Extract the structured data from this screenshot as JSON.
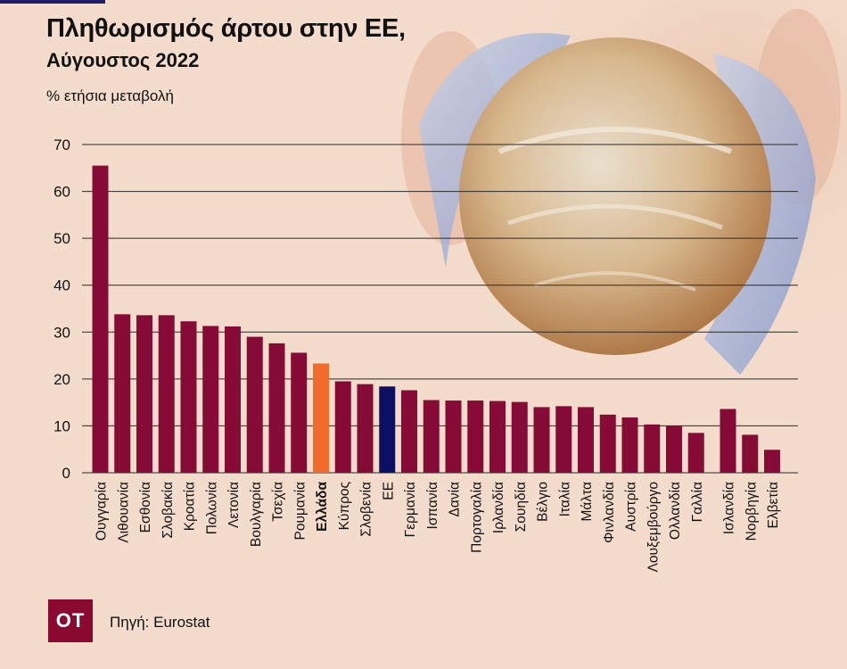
{
  "header": {
    "title": "Πληθωρισμός άρτου στην ΕΕ,",
    "subtitle": "Αύγουστος 2022",
    "unit": "% ετήσια μεταβολή"
  },
  "footer": {
    "logo_text": "OT",
    "source": "Πηγή: Eurostat"
  },
  "colors": {
    "bar": "#860b36",
    "highlight_greece": "#f26a2c",
    "highlight_eu": "#0b1062",
    "background": "#f3dccb"
  },
  "chart_data": {
    "type": "bar",
    "title": "Πληθωρισμός άρτου στην ΕΕ,",
    "subtitle": "Αύγουστος 2022",
    "ylabel": "% ετήσια μεταβολή",
    "ylim": [
      0,
      70
    ],
    "yticks": [
      0,
      10,
      20,
      30,
      40,
      50,
      60,
      70
    ],
    "grid": true,
    "categories": [
      "Ουγγαρία",
      "Λιθουανία",
      "Εσθονία",
      "Σλοβακία",
      "Κροατία",
      "Πολωνία",
      "Λετονία",
      "Βουλγαρία",
      "Τσεχία",
      "Ρουμανία",
      "Ελλάδα",
      "Κύπρος",
      "Σλοβενία",
      "ΕΕ",
      "Γερμανία",
      "Ισπανία",
      "Δανία",
      "Πορτογαλία",
      "Ιρλανδία",
      "Σουηδία",
      "Βέλγιο",
      "Ιταλία",
      "Μάλτα",
      "Φινλανδία",
      "Αυστρία",
      "Λουξεμβούργο",
      "Ολλανδία",
      "Γαλλία",
      "Ισλανδία",
      "Νορβηγία",
      "Ελβετία"
    ],
    "values": [
      65.5,
      33.8,
      33.6,
      33.6,
      32.3,
      31.3,
      31.2,
      29.0,
      27.6,
      25.6,
      23.3,
      19.5,
      18.9,
      18.4,
      17.6,
      15.5,
      15.4,
      15.4,
      15.3,
      15.1,
      14.0,
      14.2,
      14.0,
      12.4,
      11.8,
      10.3,
      10.0,
      8.5,
      13.6,
      8.1,
      4.9
    ],
    "highlights": {
      "Ελλάδα": "#f26a2c",
      "ΕΕ": "#0b1062"
    },
    "bold_labels": [
      "Ελλάδα"
    ],
    "group_gap_before": [
      "Ισλανδία"
    ]
  }
}
